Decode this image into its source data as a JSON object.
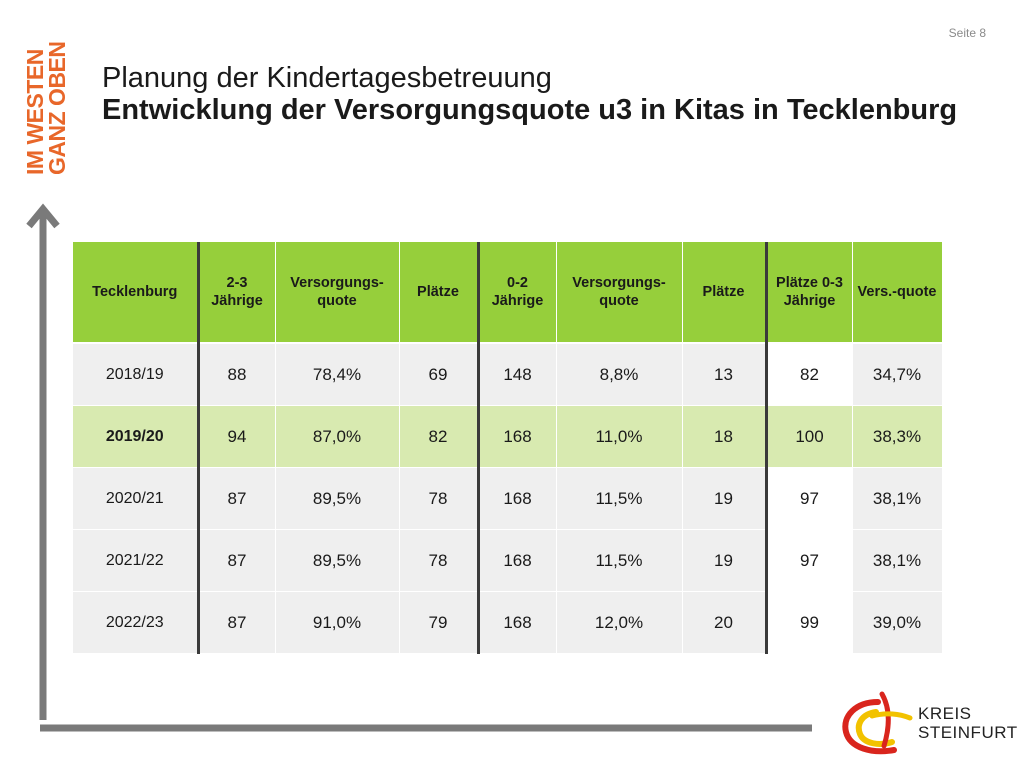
{
  "page": {
    "number_label": "Seite 8"
  },
  "brand": {
    "line1": "IM WESTEN",
    "line2": "GANZ OBEN",
    "color": "#e8672a"
  },
  "title": {
    "line1": "Planung der Kindertagesbetreuung",
    "line2": "Entwicklung der Versorgungsquote u3 in Kitas in Tecklenburg"
  },
  "table": {
    "header_color": "#96cf3b",
    "highlight_color": "#d8eab0",
    "columns": [
      "Tecklenburg",
      "2-3 Jährige",
      "Versorgungs-quote",
      "Plätze",
      "0-2 Jährige",
      "Versorgungs-quote",
      "Plätze",
      "Plätze 0-3 Jährige",
      "Vers.-quote"
    ],
    "rows": [
      [
        "2018/19",
        "88",
        "78,4%",
        "69",
        "148",
        "8,8%",
        "13",
        "82",
        "34,7%"
      ],
      [
        "2019/20",
        "94",
        "87,0%",
        "82",
        "168",
        "11,0%",
        "18",
        "100",
        "38,3%"
      ],
      [
        "2020/21",
        "87",
        "89,5%",
        "78",
        "168",
        "11,5%",
        "19",
        "97",
        "38,1%"
      ],
      [
        "2021/22",
        "87",
        "89,5%",
        "78",
        "168",
        "11,5%",
        "19",
        "97",
        "38,1%"
      ],
      [
        "2022/23",
        "87",
        "91,0%",
        "79",
        "168",
        "12,0%",
        "20",
        "99",
        "39,0%"
      ]
    ],
    "highlighted_row": "2019/20"
  },
  "logo": {
    "line1": "KREIS",
    "line2": "STEINFURT"
  }
}
